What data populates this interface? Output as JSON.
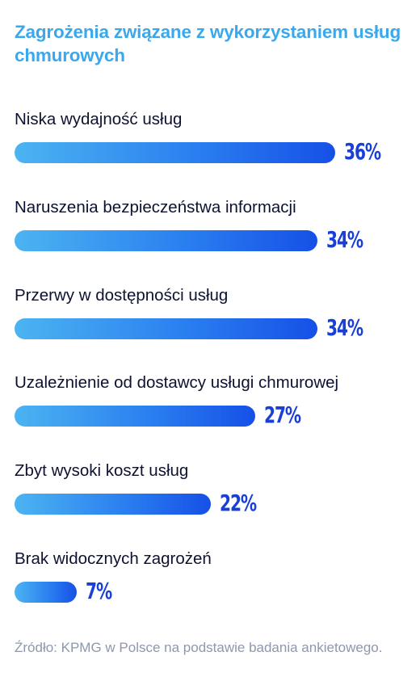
{
  "chart_data": {
    "type": "bar",
    "orientation": "horizontal",
    "title": "Zagrożenia związane z wykorzystaniem usług chmurowych",
    "categories": [
      "Niska wydajność usług",
      "Naruszenia bezpieczeństwa informacji",
      "Przerwy w dostępności usług",
      "Uzależnienie od dostawcy usługi chmurowej",
      "Zbyt wysoki koszt usług",
      "Brak widocznych zagrożeń"
    ],
    "values": [
      36,
      34,
      34,
      27,
      22,
      7
    ],
    "value_labels": [
      "36%",
      "34%",
      "34%",
      "27%",
      "22%",
      "7%"
    ],
    "unit": "%",
    "xlim": [
      0,
      36
    ],
    "grid": false,
    "legend": "none",
    "colors": {
      "title": "#3aa8ec",
      "bar_gradient_start": "#4cb4f1",
      "bar_gradient_end": "#1650e7",
      "value_label": "#1a3fd6",
      "category_label": "#0d1230",
      "source": "#8e97ab"
    }
  },
  "source": "Źródło: KPMG w Polsce na podstawie badania ankietowego."
}
